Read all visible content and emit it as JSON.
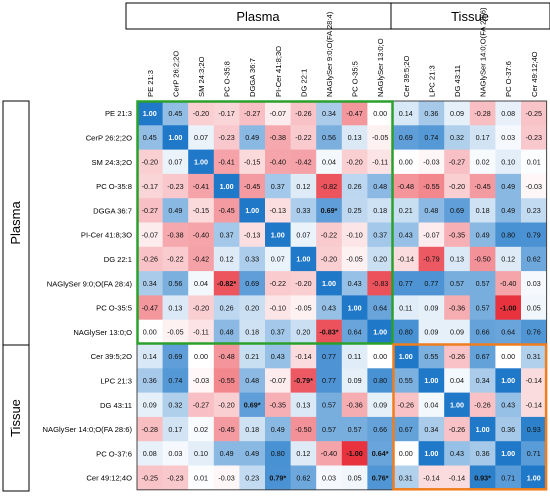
{
  "chart_data": {
    "type": "heatmap",
    "group_labels": {
      "top": [
        "Plasma",
        "Tissue"
      ],
      "left": [
        "Plasma",
        "Tissue"
      ]
    },
    "columns": [
      "PE 21:3",
      "CerP 26:2;2O",
      "SM 24:3;2O",
      "PC O-35:8",
      "DGGA 36:7",
      "PI-Cer 41:8;3O",
      "DG 22:1",
      "NAGlySer 9:0;O(FA 28:4)",
      "PC O-35:5",
      "NAGlySer 13:0;O",
      "Cer 39:5;2O",
      "LPC 21:3",
      "DG 43:11",
      "NAGlySer 14:0;O(FA 28:6)",
      "PC O-37:6",
      "Cer 49:12;4O"
    ],
    "rows": [
      "PE 21:3",
      "CerP 26:2;2O",
      "SM 24:3;2O",
      "PC O-35:8",
      "DGGA 36:7",
      "PI-Cer 41:8;3O",
      "DG 22:1",
      "NAGlySer 9:0;O(FA 28:4)",
      "PC O-35:5",
      "NAGlySer 13:0;O",
      "Cer 39:5;2O",
      "LPC 21:3",
      "DG 43:11",
      "NAGlySer 14:0;O(FA 28:6)",
      "PC O-37:6",
      "Cer 49:12;4O"
    ],
    "values": [
      [
        "1.00",
        "0.45",
        "-0.20",
        "-0.17",
        "-0.27",
        "-0.07",
        "-0.26",
        "0.34",
        "-0.47",
        "0.00",
        "0.14",
        "0.36",
        "0.09",
        "-0.28",
        "0.08",
        "-0.25"
      ],
      [
        "0.45",
        "1.00",
        "0.07",
        "-0.23",
        "0.49",
        "-0.38",
        "-0.22",
        "0.56",
        "0.13",
        "-0.05",
        "0.69",
        "0.74",
        "0.32",
        "0.17",
        "0.03",
        "-0.23"
      ],
      [
        "-0.20",
        "0.07",
        "1.00",
        "-0.41",
        "-0.15",
        "-0.40",
        "-0.42",
        "0.04",
        "-0.20",
        "-0.11",
        "0.00",
        "-0.03",
        "-0.27",
        "0.02",
        "0.10",
        "0.01"
      ],
      [
        "-0.17",
        "-0.23",
        "-0.41",
        "1.00",
        "-0.45",
        "0.37",
        "0.12",
        "-0.82",
        "0.26",
        "0.48",
        "-0.48",
        "-0.55",
        "-0.20",
        "-0.45",
        "0.49",
        "-0.03"
      ],
      [
        "-0.27",
        "0.49",
        "-0.15",
        "-0.45",
        "1.00",
        "-0.13",
        "0.33",
        "0.69*",
        "0.25",
        "0.18",
        "0.21",
        "0.48",
        "0.69",
        "0.18",
        "0.49",
        "0.23"
      ],
      [
        "-0.07",
        "-0.38",
        "-0.40",
        "0.37",
        "-0.13",
        "1.00",
        "0.07",
        "-0.22",
        "-0.10",
        "0.37",
        "0.43",
        "-0.07",
        "-0.35",
        "0.49",
        "0.80",
        "0.79"
      ],
      [
        "-0.26",
        "-0.22",
        "-0.42",
        "0.12",
        "0.33",
        "0.07",
        "1.00",
        "-0.20",
        "-0.05",
        "0.20",
        "-0.14",
        "-0.79",
        "0.13",
        "-0.50",
        "0.12",
        "0.62"
      ],
      [
        "0.34",
        "0.56",
        "0.04",
        "-0.82*",
        "0.69",
        "-0.22",
        "-0.20",
        "1.00",
        "0.43",
        "-0.83",
        "0.77",
        "0.77",
        "0.57",
        "0.57",
        "-0.40",
        "0.03"
      ],
      [
        "-0.47",
        "0.13",
        "-0.20",
        "0.26",
        "0.20",
        "-0.10",
        "-0.05",
        "0.43",
        "1.00",
        "0.64",
        "0.11",
        "0.09",
        "-0.36",
        "0.57",
        "-1.00",
        "0.05"
      ],
      [
        "0.00",
        "-0.05",
        "-0.11",
        "0.48",
        "0.18",
        "0.37",
        "0.20",
        "-0.83*",
        "0.64",
        "1.00",
        "0.80",
        "0.09",
        "0.09",
        "0.66",
        "0.64",
        "0.76"
      ],
      [
        "0.14",
        "0.69",
        "0.00",
        "-0.48",
        "0.21",
        "0.43",
        "-0.14",
        "0.77",
        "0.11",
        "0.00",
        "1.00",
        "0.55",
        "-0.26",
        "0.67",
        "0.00",
        "0.31"
      ],
      [
        "0.36",
        "0.74",
        "-0.03",
        "-0.55",
        "0.48",
        "-0.07",
        "-0.79*",
        "0.77",
        "0.09",
        "0.80",
        "0.55",
        "1.00",
        "0.04",
        "0.34",
        "1.00",
        "-0.14"
      ],
      [
        "0.09",
        "0.32",
        "-0.27",
        "-0.20",
        "0.69*",
        "-0.35",
        "0.13",
        "0.57",
        "-0.36",
        "0.09",
        "-0.26",
        "0.04",
        "1.00",
        "-0.26",
        "0.43",
        "-0.14"
      ],
      [
        "-0.28",
        "0.17",
        "0.02",
        "-0.45",
        "0.18",
        "0.49",
        "-0.50",
        "0.57",
        "0.57",
        "0.66",
        "0.67",
        "0.34",
        "-0.26",
        "1.00",
        "0.36",
        "0.93"
      ],
      [
        "0.08",
        "0.03",
        "0.10",
        "0.49",
        "0.49",
        "0.80",
        "0.12",
        "-0.40",
        "-1.00",
        "0.64*",
        "0.00",
        "1.00",
        "0.43",
        "0.36",
        "1.00",
        "0.71"
      ],
      [
        "-0.25",
        "-0.23",
        "0.01",
        "-0.03",
        "0.23",
        "0.79*",
        "0.62",
        "0.03",
        "0.05",
        "0.76*",
        "0.31",
        "-0.14",
        "-0.14",
        "0.93*",
        "0.71",
        "1.00"
      ]
    ],
    "colors": {
      "positive": "#1f78c8",
      "negative": "#e8323e",
      "neutral": "#ffffff",
      "plasma_box": "#2ca02c",
      "tissue_box": "#f07d1e"
    }
  }
}
